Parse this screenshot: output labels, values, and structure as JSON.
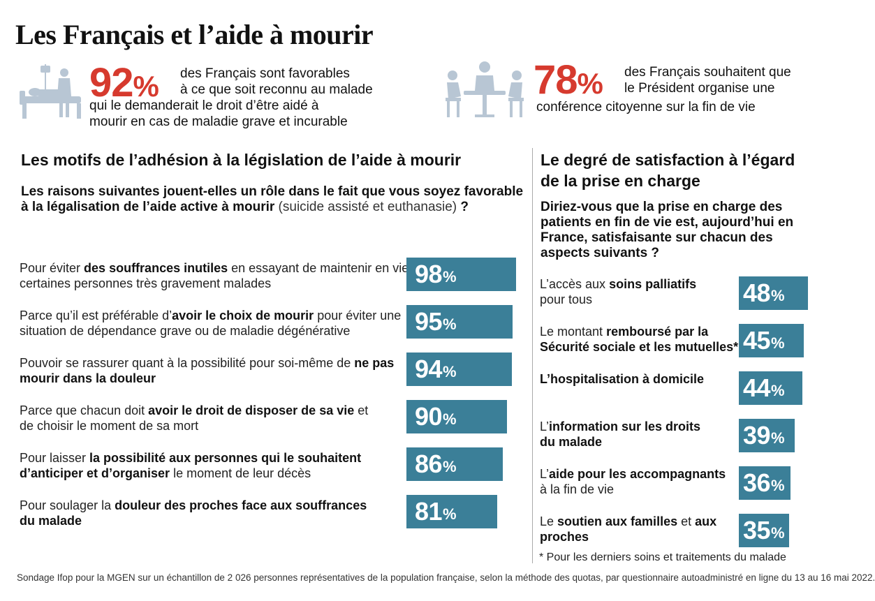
{
  "title": "Les Français et l’aide à mourir",
  "colors": {
    "accent_red": "#d63a2e",
    "bar_blue": "#3b7f98",
    "icon_grey": "#b8c6d4"
  },
  "stats": [
    {
      "icon": "hospital-patient-icon",
      "value": "92",
      "unit": "%",
      "text_line1": "des Français sont favorables",
      "text_line2": "à ce que soit reconnu au malade",
      "text_line3": "qui le demanderait  le droit d’être aidé à",
      "text_line4": "mourir en cas de maladie grave et incurable"
    },
    {
      "icon": "meeting-people-icon",
      "value": "78",
      "unit": "%",
      "text_line1": "des Français souhaitent que",
      "text_line2": "le Président organise une",
      "text_line3": "conférence citoyenne sur la fin de vie"
    }
  ],
  "left_section": {
    "heading": "Les motifs de l’adhésion à la législation de l’aide à mourir",
    "question_line1": "Les raisons suivantes jouent-elles un rôle dans le fait que vous soyez favorable",
    "question_line2": "à la légalisation de l’aide active à mourir",
    "question_light": "(suicide assisté et euthanasie)",
    "question_end": "?"
  },
  "right_section": {
    "heading_line1": "Le degré de satisfaction à l’égard",
    "heading_line2": "de la prise en charge",
    "question_line1": "Diriez-vous que la prise en charge des",
    "question_line2": "patients en fin de vie est, aujourd’hui en",
    "question_line3": "France, satisfaisante sur chacun des",
    "question_line4": "aspects suivants ?",
    "footnote": "* Pour les derniers soins et traitements du malade"
  },
  "chart_data": [
    {
      "type": "bar",
      "orientation": "horizontal",
      "title": "Les motifs de l’adhésion à la législation de l’aide à mourir",
      "unit": "%",
      "categories": [
        "Pour éviter des souffrances inutiles en essayant de maintenir en vie certaines personnes très gravement malades",
        "Parce qu’il est préférable d’avoir le choix de mourir pour éviter une situation de dépendance grave ou de maladie dégénérative",
        "Pouvoir se rassurer quant à la possibilité pour soi-même de ne pas mourir dans la douleur",
        "Parce que chacun doit avoir le droit de disposer de sa vie et de choisir le moment de sa mort",
        "Pour laisser la possibilité aux personnes qui le souhaitent d’anticiper et d’organiser le moment de leur décès",
        "Pour soulager la douleur des proches face aux souffrances du malade"
      ],
      "values": [
        98,
        95,
        94,
        90,
        86,
        81
      ],
      "labels": [
        {
          "l1a": "Pour éviter ",
          "l1b": "des souffrances inutiles",
          "l1c": " en essayant de maintenir en vie",
          "l2a": "certaines personnes très gravement malades",
          "l2b": "",
          "l2c": ""
        },
        {
          "l1a": "Parce qu’il est préférable d’",
          "l1b": "avoir le choix de mourir",
          "l1c": " pour éviter une",
          "l2a": "situation de dépendance grave ou de maladie dégénérative",
          "l2b": "",
          "l2c": ""
        },
        {
          "l1a": "Pouvoir se rassurer quant à la possibilité pour soi-même de ",
          "l1b": "ne pas",
          "l1c": "",
          "l2a": "",
          "l2b": "mourir dans la douleur",
          "l2c": ""
        },
        {
          "l1a": "Parce que chacun doit ",
          "l1b": "avoir le droit de disposer de sa vie",
          "l1c": " et",
          "l2a": "de choisir le moment de sa mort",
          "l2b": "",
          "l2c": ""
        },
        {
          "l1a": "Pour laisser ",
          "l1b": "la possibilité aux personnes qui le souhaitent",
          "l1c": "",
          "l2a": "",
          "l2b": "d’anticiper et d’organiser",
          "l2c": " le moment de leur décès"
        },
        {
          "l1a": "Pour soulager la ",
          "l1b": "douleur des proches face aux souffrances",
          "l1c": "",
          "l2a": "",
          "l2b": "du malade",
          "l2c": ""
        }
      ]
    },
    {
      "type": "bar",
      "orientation": "horizontal",
      "title": "Le degré de satisfaction à l’égard de la prise en charge",
      "unit": "%",
      "categories": [
        "L’accès aux soins palliatifs pour tous",
        "Le montant remboursé par la Sécurité sociale et les mutuelles*",
        "L’hospitalisation à domicile",
        "L’information sur les droits du malade",
        "L’aide pour les accompagnants à la fin de vie",
        "Le soutien aux familles et aux proches"
      ],
      "values": [
        48,
        45,
        44,
        39,
        36,
        35
      ],
      "labels": [
        {
          "l1a": "L’accès aux ",
          "l1b": "soins palliatifs",
          "l1c": "",
          "l2a": "pour tous",
          "l2b": "",
          "l2c": ""
        },
        {
          "l1a": "Le montant ",
          "l1b": "remboursé par la",
          "l1c": "",
          "l2a": "",
          "l2b": "Sécurité sociale et les mutuelles*",
          "l2c": ""
        },
        {
          "l1a": "",
          "l1b": "L’hospitalisation à domicile",
          "l1c": "",
          "l2a": "",
          "l2b": "",
          "l2c": ""
        },
        {
          "l1a": "L’",
          "l1b": "information sur les droits",
          "l1c": "",
          "l2a": "",
          "l2b": "du malade",
          "l2c": ""
        },
        {
          "l1a": "L’",
          "l1b": "aide pour les accompagnants",
          "l1c": "",
          "l2a": "à la fin de vie",
          "l2b": "",
          "l2c": ""
        },
        {
          "l1a": "Le ",
          "l1b": "soutien aux familles",
          "l1c": " et ",
          "l2a": "",
          "l2b": "proches",
          "l2c": "",
          "l1d": "aux"
        }
      ]
    }
  ],
  "source": "Sondage Ifop pour la MGEN sur un échantillon de 2 026 personnes représentatives de la population française, selon la méthode des quotas, par questionnaire autoadministré en ligne du 13 au 16 mai 2022."
}
